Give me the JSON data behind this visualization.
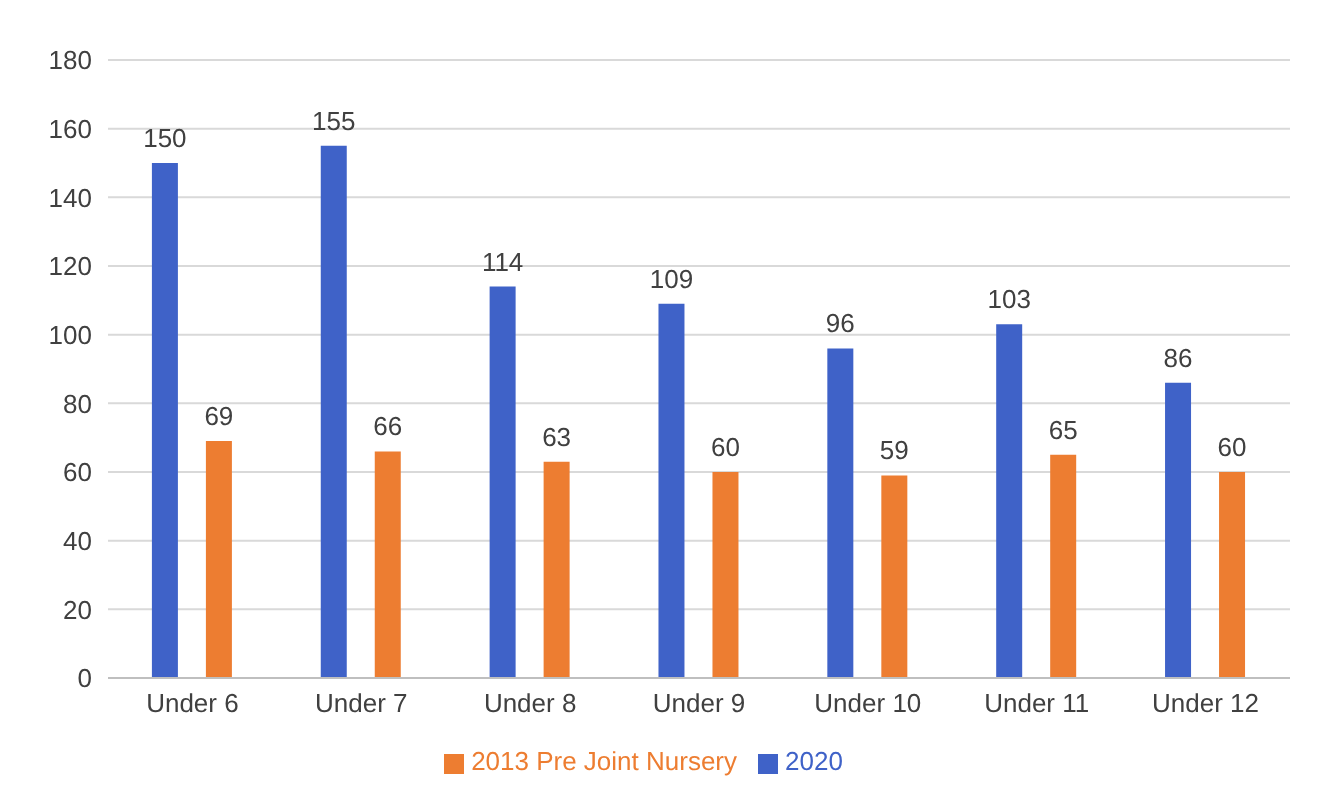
{
  "chart_data": {
    "type": "bar",
    "categories": [
      "Under 6",
      "Under 7",
      "Under 8",
      "Under 9",
      "Under 10",
      "Under 11",
      "Under 12"
    ],
    "series": [
      {
        "name": "2020",
        "color": "#3f62c8",
        "values": [
          150,
          155,
          114,
          109,
          96,
          103,
          86
        ]
      },
      {
        "name": "2013 Pre Joint Nursery",
        "color": "#ed7d31",
        "values": [
          69,
          66,
          63,
          60,
          59,
          65,
          60
        ]
      }
    ],
    "ylim": [
      0,
      180
    ],
    "yticks": [
      0,
      20,
      40,
      60,
      80,
      100,
      120,
      140,
      160,
      180
    ],
    "grid": "y",
    "legend": "bottom",
    "data_labels": true
  }
}
